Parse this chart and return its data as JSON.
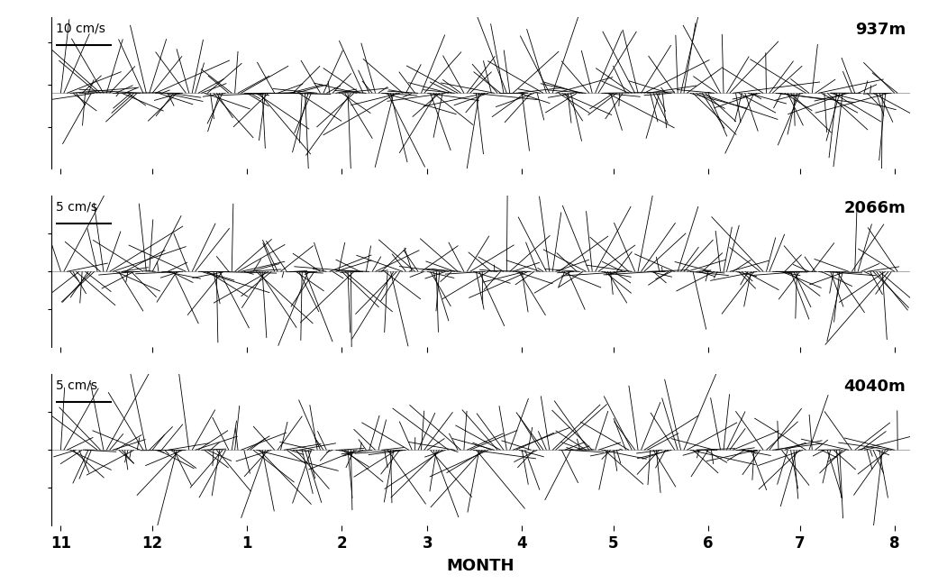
{
  "depths": [
    "937m",
    "2066m",
    "4040m"
  ],
  "scale_labels": [
    "10 cm/s",
    "5 cm/s",
    "5 cm/s"
  ],
  "scale_values": [
    10,
    5,
    5
  ],
  "month_labels": [
    "11",
    "12",
    "1",
    "2",
    "3",
    "4",
    "5",
    "6",
    "7",
    "8"
  ],
  "month_positions": [
    0,
    30,
    61,
    92,
    120,
    151,
    181,
    212,
    242,
    273
  ],
  "xlabel": "MONTH",
  "background_color": "#ffffff",
  "line_color": "#000000",
  "total_days": 275,
  "ylim_factor": [
    18,
    10,
    10
  ],
  "seeds": [
    42,
    123,
    77
  ],
  "amp_u": [
    6.0,
    2.5,
    2.5
  ],
  "amp_v": [
    7.0,
    3.5,
    3.5
  ],
  "noise_u": [
    3.0,
    1.5,
    1.5
  ],
  "noise_v": [
    3.0,
    1.5,
    1.5
  ]
}
